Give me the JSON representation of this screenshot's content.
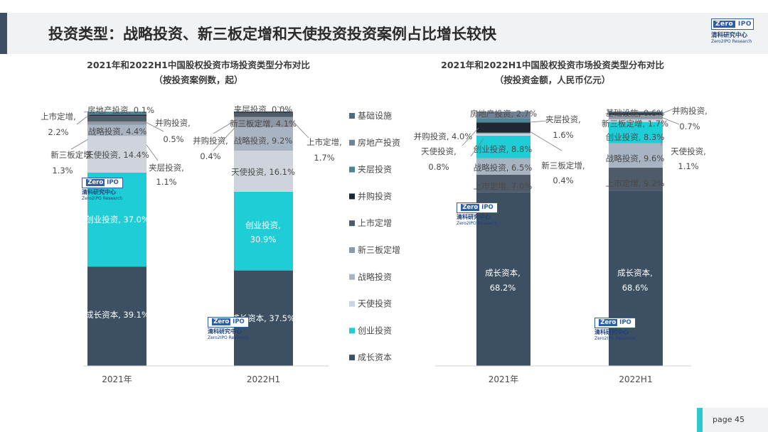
{
  "header": {
    "title": "投资类型：战略投资、新三板定增和天使投资投资案例占比增长较快"
  },
  "brand": {
    "logo_zero": "Zero",
    "logo_ipo": "IPO",
    "cn_name": "清科研究中心",
    "en_name": "Zero2IPO Research"
  },
  "colors": {
    "成长资本": "#3d5063",
    "创业投资": "#1ecdd6",
    "天使投资": "#cfd4dc",
    "战略投资": "#a9b4c2",
    "新三板定增": "#8e97a4",
    "上市定增": "#4f5b68",
    "并购投资": "#1f2733",
    "夹层投资": "#4a8696",
    "房地产投资": "#6f8195",
    "基础设施": "#4d6a86"
  },
  "legend": {
    "items": [
      "基础设施",
      "房地产投资",
      "夹层投资",
      "并购投资",
      "上市定增",
      "新三板定增",
      "战略投资",
      "天使投资",
      "创业投资",
      "成长资本"
    ]
  },
  "chart_data": [
    {
      "type": "bar",
      "stacked": true,
      "title": "2021年和2022H1中国股权投资市场投资类型分布对比",
      "subtitle": "（按投资案例数，起）",
      "categories": [
        "2021年",
        "2022H1"
      ],
      "series": [
        {
          "name": "成长资本",
          "values": [
            39.1,
            37.5
          ]
        },
        {
          "name": "创业投资",
          "values": [
            37.0,
            30.9
          ]
        },
        {
          "name": "天使投资",
          "values": [
            14.4,
            16.1
          ]
        },
        {
          "name": "战略投资",
          "values": [
            4.4,
            9.2
          ]
        },
        {
          "name": "新三板定增",
          "values": [
            1.3,
            4.1
          ]
        },
        {
          "name": "上市定增",
          "values": [
            2.2,
            1.7
          ]
        },
        {
          "name": "并购投资",
          "values": [
            0.5,
            0.4
          ]
        },
        {
          "name": "夹层投资",
          "values": [
            1.1,
            0.0
          ]
        },
        {
          "name": "房地产投资",
          "values": [
            0.1,
            0.0
          ]
        },
        {
          "name": "基础设施",
          "values": [
            0.0,
            0.0
          ]
        }
      ],
      "data_labels": [
        [
          "成长资本, 39.1%",
          "创业投资, 37.0%",
          "天使投资, 14.4%",
          "战略投资, 4.4%",
          "新三板定增",
          "1.3%",
          "上市定增,",
          "2.2%",
          "并购投资,",
          "0.5%",
          "夹层投资,",
          "1.1%",
          "房地产投资, 0.1%"
        ],
        [
          "成长资本, 37.5%",
          "创业投资,",
          "30.9%",
          "天使投资, 16.1%",
          "战略投资, 9.2%",
          "新三板定增, 4.1%",
          "上市定增,",
          "1.7%",
          "并购投资,",
          "0.4%",
          "夹层投资, 0.0%"
        ]
      ]
    },
    {
      "type": "bar",
      "stacked": true,
      "title": "2021年和2022H1中国股权投资市场投资类型分布对比",
      "subtitle": "（按投资金额，人民币亿元）",
      "categories": [
        "2021年",
        "2022H1"
      ],
      "series": [
        {
          "name": "成长资本",
          "values": [
            68.2,
            68.6
          ]
        },
        {
          "name": "上市定增",
          "values": [
            7.0,
            9.2
          ]
        },
        {
          "name": "战略投资",
          "values": [
            6.5,
            9.6
          ]
        },
        {
          "name": "创业投资",
          "values": [
            8.8,
            8.3
          ]
        },
        {
          "name": "天使投资",
          "values": [
            0.8,
            1.1
          ]
        },
        {
          "name": "新三板定增",
          "values": [
            0.4,
            1.7
          ]
        },
        {
          "name": "并购投资",
          "values": [
            4.0,
            0.7
          ]
        },
        {
          "name": "夹层投资",
          "values": [
            1.6,
            0.0
          ]
        },
        {
          "name": "房地产投资",
          "values": [
            2.7,
            0.0
          ]
        },
        {
          "name": "基础设施",
          "values": [
            0.0,
            0.6
          ]
        }
      ],
      "data_labels": [
        [
          "成长资本,",
          "68.2%",
          "上市定增, 7.0%",
          "战略投资, 6.5%",
          "创业投资, 8.8%",
          "天使投资,",
          "0.8%",
          "新三板定增,",
          "0.4%",
          "并购投资, 4.0%",
          "夹层投资,",
          "1.6%",
          "房地产投资, 2.7%"
        ],
        [
          "成长资本,",
          "68.6%",
          "上市定增, 9.2%",
          "战略投资, 9.6%",
          "创业投资, 8.3%",
          "天使投资,",
          "1.1%",
          "新三板定增, 1.7%",
          "并购投资,",
          "0.7%",
          "基础设施, 0.6%"
        ]
      ]
    }
  ],
  "footer": {
    "page_label": "page  45"
  }
}
